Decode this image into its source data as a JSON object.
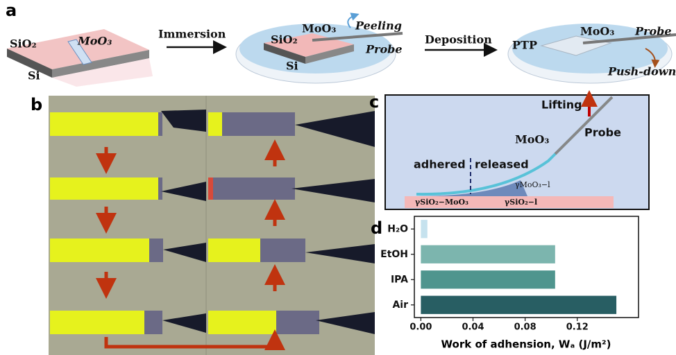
{
  "panel_a": {
    "label": "a",
    "chip_sio2": "SiO₂",
    "chip_moo3": "MoO₃",
    "chip_si": "Si",
    "step1": "Immersion",
    "dish1_moo3": "MoO₃",
    "dish1_peeling": "Peeling",
    "dish1_sio2": "SiO₂",
    "dish1_probe": "Probe",
    "dish1_si": "Si",
    "step2": "Deposition",
    "dish2_ptp": "PTP",
    "dish2_moo3": "MoO₃",
    "dish2_probe": "Probe",
    "dish2_push": "Push-down"
  },
  "panel_b": {
    "label": "b"
  },
  "panel_c": {
    "label": "c",
    "lifting": "Lifting",
    "probe": "Probe",
    "moo3": "MoO₃",
    "adhered": "adhered",
    "released": "released",
    "gamma_moo3_l": "γMoO₃−l",
    "gamma_sio2_moo3": "γSiO₂−MoO₃",
    "gamma_sio2_l": "γSiO₂−l"
  },
  "panel_d": {
    "label": "d"
  },
  "chart_data": {
    "type": "bar",
    "orientation": "horizontal",
    "categories": [
      "H₂O",
      "EtOH",
      "IPA",
      "Air"
    ],
    "values": [
      0.005,
      0.103,
      0.103,
      0.15
    ],
    "colors": [
      "#c6e2ee",
      "#7cb5ae",
      "#4f958e",
      "#285e63"
    ],
    "xlim": [
      -0.005,
      0.167
    ],
    "xticks": [
      {
        "value": 0,
        "label": "0.00"
      },
      0.04,
      0.08,
      0.12
    ],
    "x_label": "Work of adhension, Wₐ (J/m²)"
  }
}
